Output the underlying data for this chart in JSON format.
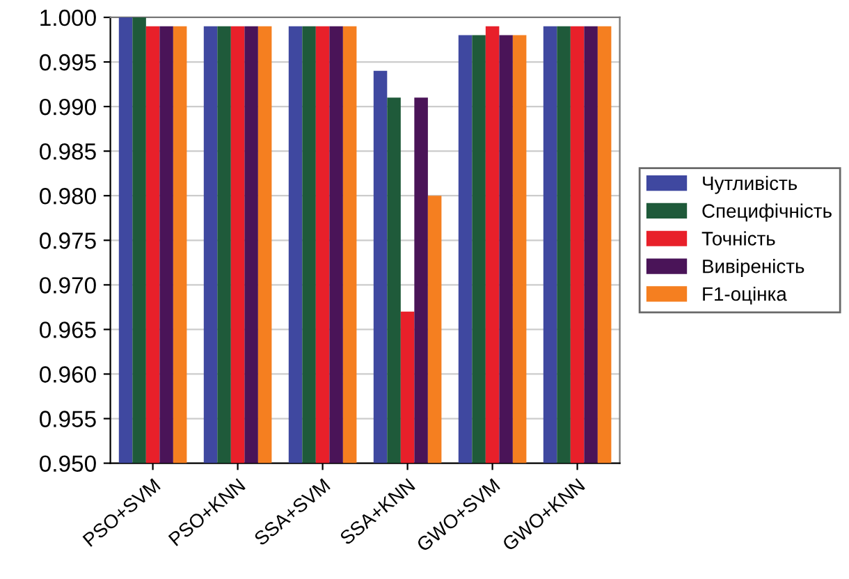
{
  "chart_data": {
    "type": "bar",
    "categories": [
      "PSO+SVM",
      "PSO+KNN",
      "SSA+SVM",
      "SSA+KNN",
      "GWO+SVM",
      "GWO+KNN"
    ],
    "series": [
      {
        "name": "Чутливість",
        "color": "#3f48a0",
        "values": [
          1.0,
          0.999,
          0.999,
          0.994,
          0.998,
          0.999
        ]
      },
      {
        "name": "Специфічність",
        "color": "#1f5a3a",
        "values": [
          1.0,
          0.999,
          0.999,
          0.991,
          0.998,
          0.999
        ]
      },
      {
        "name": "Точність",
        "color": "#e8202a",
        "values": [
          0.999,
          0.999,
          0.999,
          0.967,
          0.999,
          0.999
        ]
      },
      {
        "name": "Вивіреність",
        "color": "#4a1458",
        "values": [
          0.999,
          0.999,
          0.999,
          0.991,
          0.998,
          0.999
        ]
      },
      {
        "name": "F1-оцінка",
        "color": "#f57f20",
        "values": [
          0.999,
          0.999,
          0.999,
          0.98,
          0.998,
          0.999
        ]
      }
    ],
    "ylim": [
      0.95,
      1.0
    ],
    "yticks": [
      {
        "value": 0.95,
        "label": "0.950"
      },
      {
        "value": 0.955,
        "label": "0.955"
      },
      {
        "value": 0.96,
        "label": "0.960"
      },
      {
        "value": 0.965,
        "label": "0.965"
      },
      {
        "value": 0.97,
        "label": "0.970"
      },
      {
        "value": 0.975,
        "label": "0.975"
      },
      {
        "value": 0.98,
        "label": "0.980"
      },
      {
        "value": 0.985,
        "label": "0.985"
      },
      {
        "value": 0.99,
        "label": "0.990"
      },
      {
        "value": 0.995,
        "label": "0.995"
      },
      {
        "value": 1.0,
        "label": "1.000"
      }
    ],
    "grid": "y",
    "legend": "right"
  }
}
